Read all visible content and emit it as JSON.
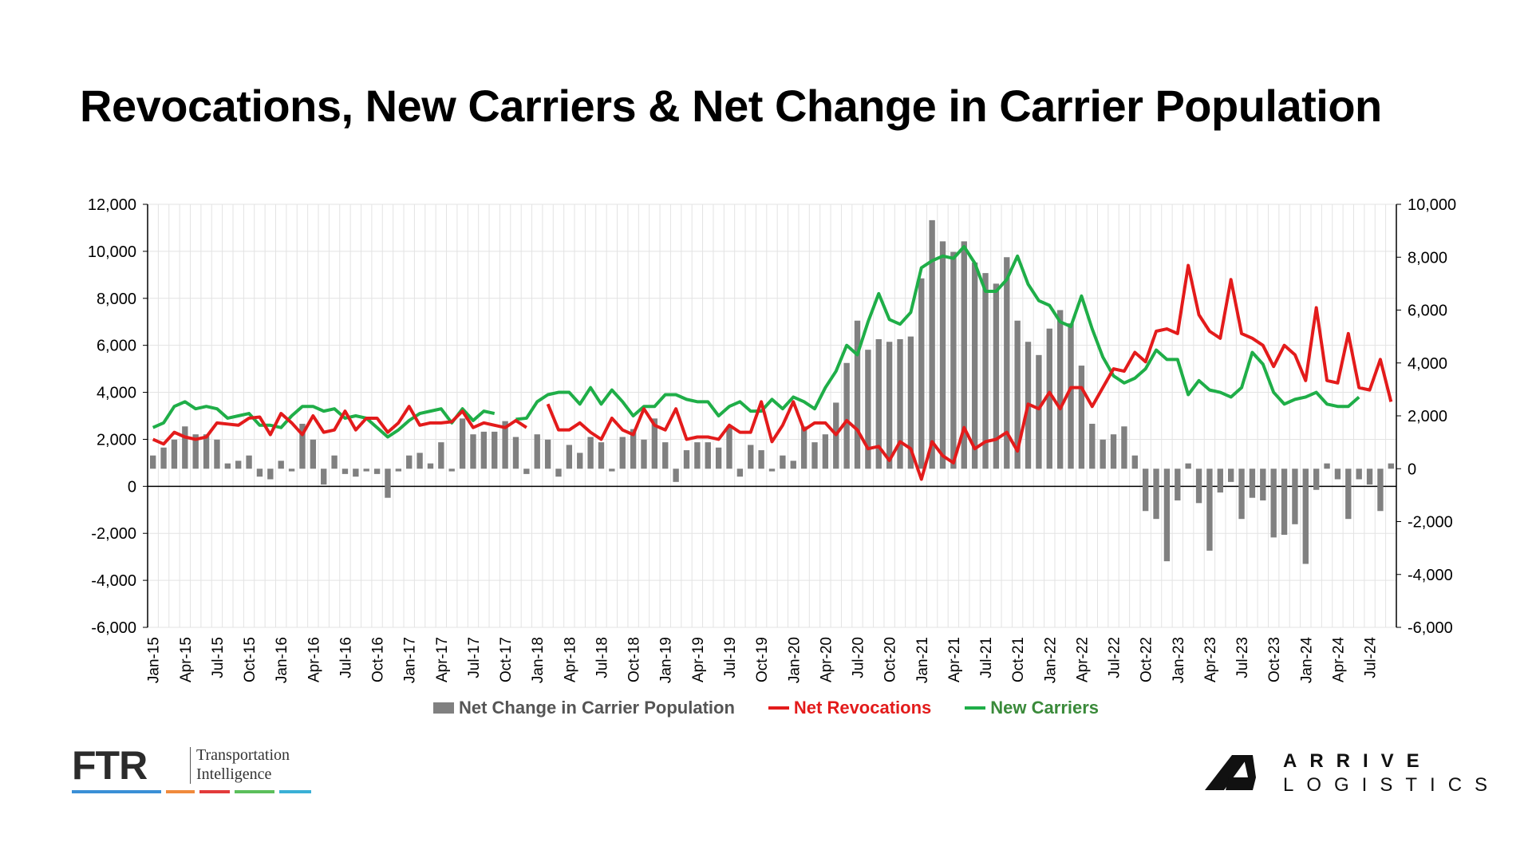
{
  "title": "Revocations, New Carriers & Net Change in Carrier Population",
  "colors": {
    "net_change": "#808080",
    "revocations": "#e31b1b",
    "new_carriers": "#1fae48",
    "ftr_blue": "#3a8fd6",
    "ftr_orange": "#f08a3c",
    "ftr_red": "#e33b3b",
    "ftr_green": "#5bbf5b",
    "ftr_cyan": "#3ab0d6"
  },
  "legend": {
    "net_change": "Net Change in Carrier Population",
    "revocations": "Net Revocations",
    "new_carriers": "New Carriers"
  },
  "logos": {
    "ftr_mark": "FTR",
    "ftr_sub_1": "Transportation",
    "ftr_sub_2": "Intelligence",
    "arrive_1": "ARRIVE",
    "arrive_2": "LOGISTICS"
  },
  "chart_data": {
    "type": "bar+line",
    "x_labels": [
      "Jan-15",
      "Apr-15",
      "Jul-15",
      "Oct-15",
      "Jan-16",
      "Apr-16",
      "Jul-16",
      "Oct-16",
      "Jan-17",
      "Apr-17",
      "Jul-17",
      "Oct-17",
      "Jan-18",
      "Apr-18",
      "Jul-18",
      "Oct-18",
      "Jan-19",
      "Apr-19",
      "Jul-19",
      "Oct-19",
      "Jan-20",
      "Apr-20",
      "Jul-20",
      "Oct-20",
      "Jan-21",
      "Apr-21",
      "Jul-21",
      "Oct-21",
      "Jan-22",
      "Apr-22",
      "Jul-22",
      "Oct-22",
      "Jan-23",
      "Apr-23",
      "Jul-23",
      "Oct-23",
      "Jan-24",
      "Apr-24",
      "Jul-24"
    ],
    "y_left": {
      "min": -6000,
      "max": 12000,
      "step": 2000,
      "ticks": [
        "-6,000",
        "-4,000",
        "-2,000",
        "0",
        "2,000",
        "4,000",
        "6,000",
        "8,000",
        "10,000",
        "12,000"
      ]
    },
    "y_right": {
      "min": -6000,
      "max": 10000,
      "step": 2000,
      "ticks": [
        "-6,000",
        "-4,000",
        "-2,000",
        "0",
        "2,000",
        "4,000",
        "6,000",
        "8,000",
        "10,000"
      ]
    },
    "grid": true,
    "gap_index": 36,
    "series": [
      {
        "name": "Net Change in Carrier Population",
        "type": "bar",
        "axis": "right",
        "values": [
          500,
          800,
          1100,
          1600,
          1300,
          1300,
          1100,
          200,
          300,
          500,
          -300,
          -400,
          300,
          -100,
          1700,
          1100,
          -600,
          500,
          -200,
          -300,
          -100,
          -200,
          -1100,
          -100,
          500,
          600,
          200,
          1000,
          -100,
          1900,
          1300,
          1400,
          1400,
          1800,
          1200,
          -200,
          1300,
          1100,
          -300,
          900,
          600,
          1200,
          1000,
          -100,
          1200,
          1500,
          1100,
          1900,
          1000,
          -500,
          700,
          1000,
          1000,
          800,
          1600,
          -300,
          900,
          700,
          -100,
          500,
          300,
          1600,
          1000,
          1300,
          2500,
          4000,
          5600,
          4500,
          4900,
          4800,
          4900,
          5000,
          7200,
          9400,
          8600,
          8200,
          8600,
          7800,
          7400,
          7000,
          8000,
          5600,
          4800,
          4300,
          5300,
          6000,
          5500,
          3900,
          1700,
          1100,
          1300,
          1600,
          500,
          -1600,
          -1900,
          -3500,
          -1200,
          200,
          -1300,
          -3100,
          -900,
          -500,
          -1900,
          -1100,
          -1200,
          -2600,
          -2500,
          -2100,
          -3600,
          -800,
          200,
          -400,
          -1900,
          -400,
          -600,
          -1600,
          200
        ],
        "gap": [
          35
        ]
      },
      {
        "name": "Net Revocations",
        "type": "line",
        "axis": "left",
        "values": [
          2000,
          1800,
          2300,
          2100,
          2000,
          2100,
          2700,
          2650,
          2600,
          2900,
          2950,
          2200,
          3100,
          2700,
          2200,
          3000,
          2300,
          2400,
          3200,
          2400,
          2900,
          2900,
          2300,
          2700,
          3400,
          2600,
          2700,
          2700,
          2750,
          3200,
          2500,
          2700,
          2600,
          2500,
          2800,
          2500,
          null,
          3500,
          2400,
          2400,
          2700,
          2300,
          2000,
          2900,
          2400,
          2200,
          3300,
          2600,
          2400,
          3300,
          2000,
          2100,
          2100,
          2000,
          2600,
          2300,
          2300,
          3600,
          1900,
          2600,
          3600,
          2400,
          2700,
          2700,
          2200,
          2800,
          2400,
          1600,
          1700,
          1100,
          1900,
          1600,
          300,
          1900,
          1300,
          1000,
          2500,
          1600,
          1900,
          2000,
          2300,
          1500,
          3500,
          3300,
          4000,
          3300,
          4200,
          4200,
          3400,
          4200,
          5000,
          4900,
          5700,
          5300,
          6600,
          6700,
          6500,
          9400,
          7300,
          6600,
          6300,
          8800,
          6500,
          6300,
          6000,
          5100,
          6000,
          5600,
          4500,
          7600,
          4500,
          4400,
          6500,
          4200,
          4100,
          5400,
          3600
        ],
        "gap": [
          35
        ]
      },
      {
        "name": "New Carriers",
        "type": "line",
        "axis": "left",
        "values": [
          2500,
          2700,
          3400,
          3600,
          3300,
          3400,
          3300,
          2900,
          3000,
          3100,
          2600,
          2600,
          2500,
          3000,
          3400,
          3400,
          3200,
          3300,
          2900,
          3000,
          2900,
          2500,
          2100,
          2400,
          2800,
          3100,
          3200,
          3300,
          2700,
          3300,
          2800,
          3200,
          3100,
          null,
          2850,
          2900,
          3600,
          3900,
          4000,
          4000,
          3500,
          4200,
          3500,
          4100,
          3600,
          3000,
          3400,
          3400,
          3900,
          3900,
          3700,
          3600,
          3600,
          3000,
          3400,
          3600,
          3200,
          3200,
          3700,
          3300,
          3800,
          3600,
          3300,
          4200,
          4900,
          6000,
          5600,
          7000,
          8200,
          7100,
          6900,
          7400,
          9300,
          9600,
          9800,
          9700,
          10200,
          9500,
          8300,
          8300,
          8800,
          9800,
          8600,
          7900,
          7700,
          7000,
          6800,
          8100,
          6700,
          5500,
          4700,
          4400,
          4600,
          5000,
          5800,
          5400,
          5400,
          3900,
          4500,
          4100,
          4000,
          3800,
          4200,
          5700,
          5200,
          4000,
          3500,
          3700,
          3800,
          4000,
          3500,
          3400,
          3400,
          3800
        ],
        "gap": [
          35
        ]
      }
    ]
  }
}
